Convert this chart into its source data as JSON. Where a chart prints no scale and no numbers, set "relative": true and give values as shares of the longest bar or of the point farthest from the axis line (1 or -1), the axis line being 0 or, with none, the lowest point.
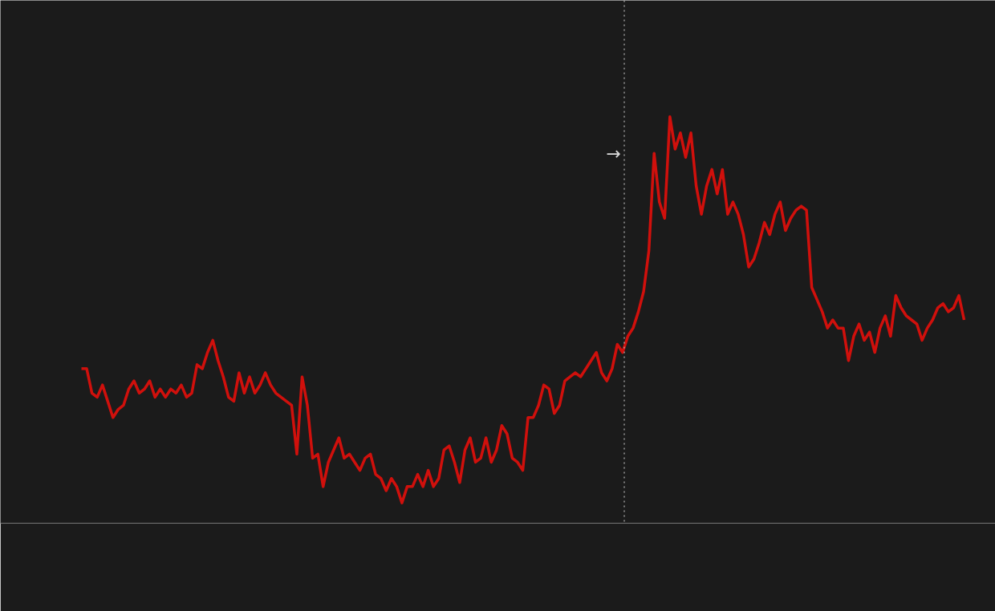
{
  "chart_data": {
    "type": "line",
    "relative": true,
    "line_style": "solid",
    "marker": "none",
    "categories": [
      null,
      null,
      null,
      null,
      null,
      null,
      null,
      null,
      null,
      null,
      null,
      null,
      null,
      null,
      null,
      null,
      null,
      null,
      null,
      null,
      null,
      null,
      null,
      null,
      null,
      null,
      null,
      null,
      null,
      null,
      null,
      null,
      null,
      null,
      null,
      null,
      null,
      null,
      null,
      null,
      null,
      null,
      null,
      null,
      null,
      null,
      null,
      null,
      null,
      null,
      null,
      null,
      null,
      null,
      null,
      null,
      null,
      null,
      null,
      null,
      null,
      null,
      null,
      null,
      null,
      null,
      null,
      null,
      null,
      null,
      null,
      null,
      null,
      null,
      null,
      null,
      null,
      null,
      null,
      null,
      null,
      null,
      null,
      null,
      null,
      null,
      null,
      null,
      null,
      null,
      null,
      null,
      null,
      null,
      null,
      null,
      null,
      null,
      null,
      null,
      null,
      null,
      null,
      null,
      null,
      null,
      null,
      null,
      null,
      null,
      null,
      null,
      null,
      null,
      null,
      null,
      null,
      null,
      null,
      null,
      null,
      null,
      null,
      null,
      null,
      null,
      null,
      null,
      null,
      null,
      null,
      null,
      null,
      null,
      null,
      null,
      null,
      null,
      null,
      null,
      null,
      null,
      null,
      null,
      null,
      null,
      null,
      null,
      null,
      null,
      null,
      null,
      null,
      null,
      null,
      null,
      null,
      null,
      null,
      null,
      null,
      null,
      null,
      null,
      null,
      null,
      null,
      null,
      null
    ],
    "series": [
      {
        "color": "#d0100c",
        "values": [
          0.38,
          0.38,
          0.32,
          0.31,
          0.34,
          0.3,
          0.26,
          0.28,
          0.29,
          0.33,
          0.35,
          0.32,
          0.33,
          0.35,
          0.31,
          0.33,
          0.31,
          0.33,
          0.32,
          0.34,
          0.31,
          0.32,
          0.39,
          0.38,
          0.42,
          0.45,
          0.4,
          0.36,
          0.31,
          0.3,
          0.37,
          0.32,
          0.36,
          0.32,
          0.34,
          0.37,
          0.34,
          0.32,
          0.31,
          0.3,
          0.29,
          0.17,
          0.36,
          0.29,
          0.16,
          0.17,
          0.09,
          0.15,
          0.18,
          0.21,
          0.16,
          0.17,
          0.15,
          0.13,
          0.16,
          0.17,
          0.12,
          0.11,
          0.08,
          0.11,
          0.09,
          0.05,
          0.09,
          0.09,
          0.12,
          0.09,
          0.13,
          0.09,
          0.11,
          0.18,
          0.19,
          0.15,
          0.1,
          0.18,
          0.21,
          0.15,
          0.16,
          0.21,
          0.15,
          0.18,
          0.24,
          0.22,
          0.16,
          0.15,
          0.13,
          0.26,
          0.26,
          0.29,
          0.34,
          0.33,
          0.27,
          0.29,
          0.35,
          0.36,
          0.37,
          0.36,
          0.38,
          0.4,
          0.42,
          0.37,
          0.35,
          0.38,
          0.44,
          0.42,
          0.46,
          0.48,
          0.52,
          0.57,
          0.67,
          0.91,
          0.79,
          0.75,
          1.0,
          0.92,
          0.96,
          0.9,
          0.96,
          0.83,
          0.76,
          0.83,
          0.87,
          0.81,
          0.87,
          0.76,
          0.79,
          0.76,
          0.71,
          0.63,
          0.65,
          0.69,
          0.74,
          0.71,
          0.76,
          0.79,
          0.72,
          0.75,
          0.77,
          0.78,
          0.77,
          0.58,
          0.55,
          0.52,
          0.48,
          0.5,
          0.48,
          0.48,
          0.4,
          0.46,
          0.49,
          0.45,
          0.47,
          0.42,
          0.48,
          0.51,
          0.46,
          0.56,
          0.53,
          0.51,
          0.5,
          0.49,
          0.45,
          0.48,
          0.5,
          0.53,
          0.54,
          0.52,
          0.53,
          0.56,
          0.5
        ]
      }
    ],
    "annotations": [
      "→"
    ]
  }
}
